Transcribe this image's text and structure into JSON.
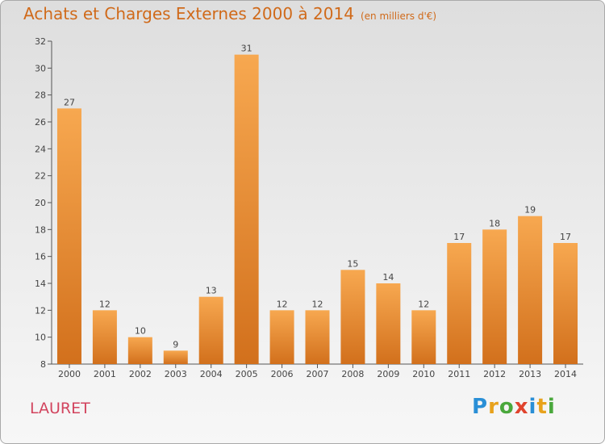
{
  "header": {
    "title": "Achats et Charges Externes 2000 à 2014",
    "unit": "(en milliers d'€)"
  },
  "place": "LAURET",
  "logo": {
    "text": "Proxiti",
    "letters": [
      "P",
      "r",
      "o",
      "x",
      "i",
      "t",
      "i"
    ],
    "colors": [
      "#2a8fd6",
      "#e8a21c",
      "#4aa83c",
      "#e0442e",
      "#2a8fd6",
      "#e8a21c",
      "#4aa83c"
    ]
  },
  "colors": {
    "title": "#d06a1a",
    "bar_light": "#f7a850",
    "bar_dark": "#d2701c",
    "place": "#d2445e"
  },
  "chart_data": {
    "type": "bar",
    "categories": [
      "2000",
      "2001",
      "2002",
      "2003",
      "2004",
      "2005",
      "2006",
      "2007",
      "2008",
      "2009",
      "2010",
      "2011",
      "2012",
      "2013",
      "2014"
    ],
    "values": [
      27,
      12,
      10,
      9,
      13,
      31,
      12,
      12,
      15,
      14,
      12,
      17,
      18,
      19,
      17
    ],
    "ylim": [
      8,
      32
    ],
    "yticks": [
      8,
      10,
      12,
      14,
      16,
      18,
      20,
      22,
      24,
      26,
      28,
      30,
      32
    ],
    "grid": false
  }
}
